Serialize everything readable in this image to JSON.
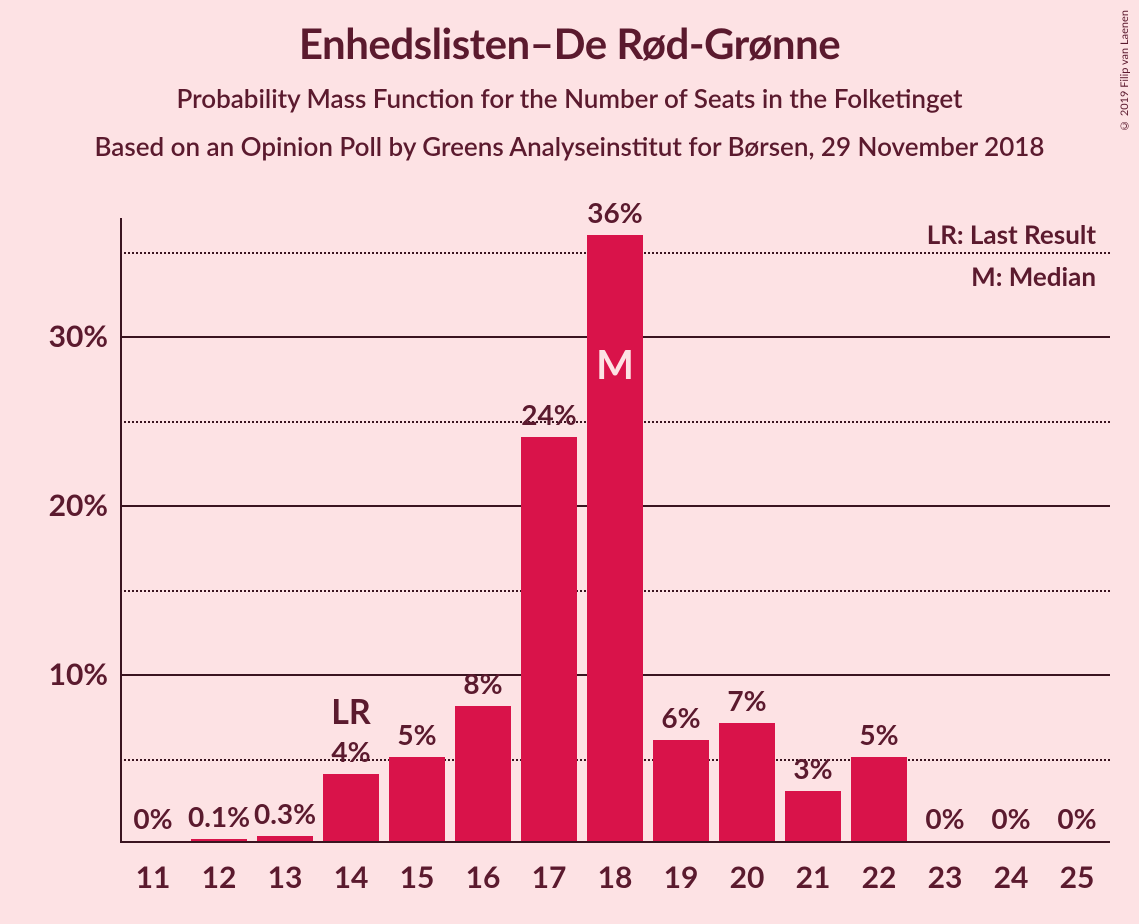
{
  "background_color": "#fde2e4",
  "text_color": "#5b1a2e",
  "bar_color": "#d9134a",
  "axis_color": "#3a1420",
  "grid_dotted_color": "#3a1420",
  "median_text_color": "#fde2e4",
  "title": "Enhedslisten–De Rød-Grønne",
  "subtitle": "Probability Mass Function for the Number of Seats in the Folketinget",
  "subtitle2": "Based on an Opinion Poll by Greens Analyseinstitut for Børsen, 29 November 2018",
  "copyright": "© 2019 Filip van Laenen",
  "legend_lr": "LR: Last Result",
  "legend_m": "M: Median",
  "chart": {
    "type": "bar",
    "ymax": 37,
    "y_major_ticks": [
      10,
      20,
      30
    ],
    "y_minor_ticks": [
      5,
      15,
      25,
      35
    ],
    "categories": [
      "11",
      "12",
      "13",
      "14",
      "15",
      "16",
      "17",
      "18",
      "19",
      "20",
      "21",
      "22",
      "23",
      "24",
      "25"
    ],
    "values": [
      0,
      0.1,
      0.3,
      4,
      5,
      8,
      24,
      36,
      6,
      7,
      3,
      5,
      0,
      0,
      0
    ],
    "labels": [
      "0%",
      "0.1%",
      "0.3%",
      "4%",
      "5%",
      "8%",
      "24%",
      "36%",
      "6%",
      "7%",
      "3%",
      "5%",
      "0%",
      "0%",
      "0%"
    ],
    "lr_index": 3,
    "lr_text": "LR",
    "median_index": 7,
    "median_text": "M"
  }
}
